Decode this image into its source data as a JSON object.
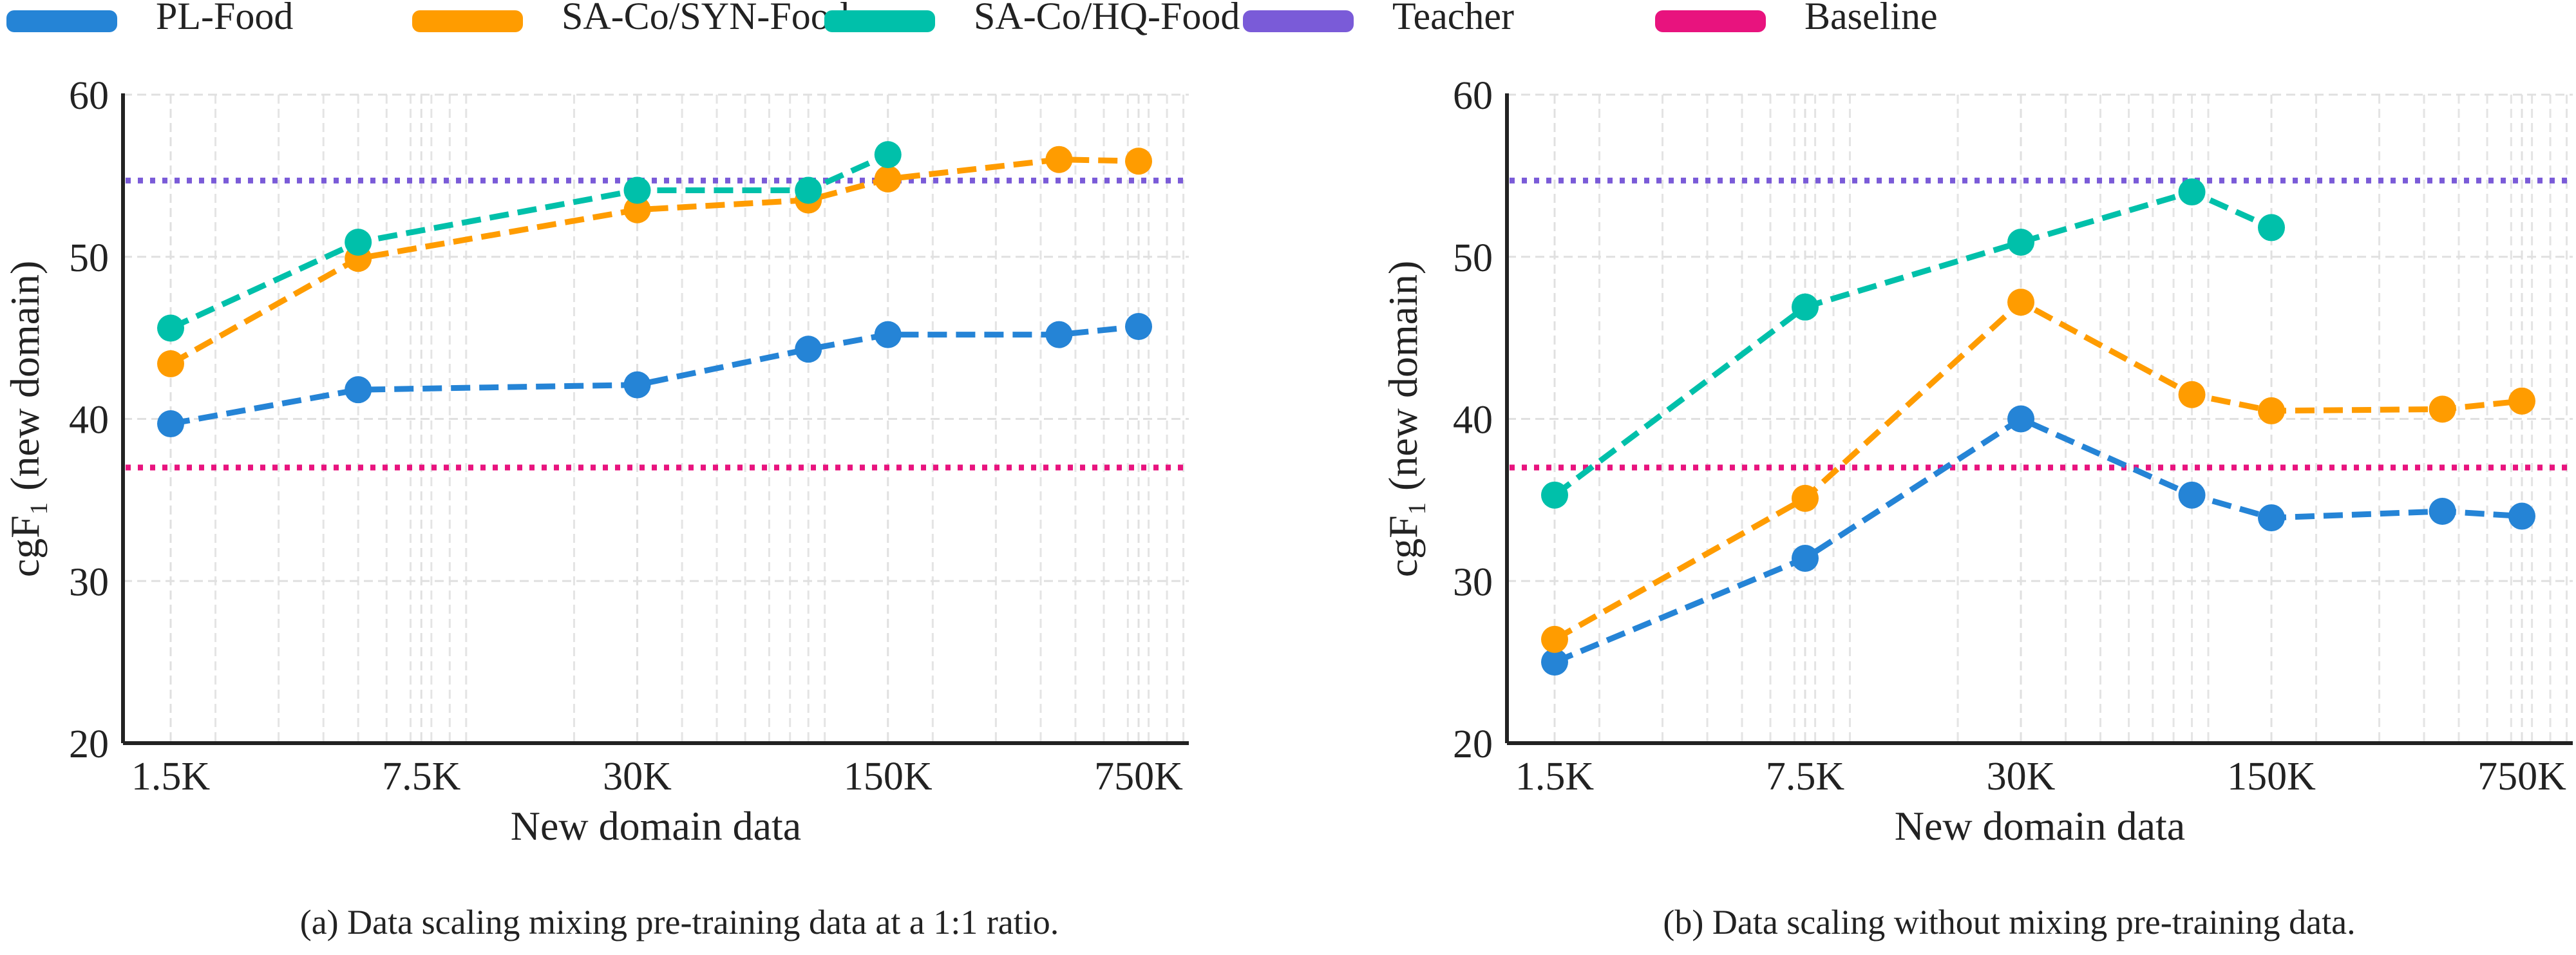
{
  "legend": [
    {
      "label": "PL-Food",
      "color": "#2584d6"
    },
    {
      "label": "SA-Co/SYN-Food",
      "color": "#ff9c00"
    },
    {
      "label": "SA-Co/HQ-Food",
      "color": "#00c0aa"
    },
    {
      "label": "Teacher",
      "color": "#7a5bd8"
    },
    {
      "label": "Baseline",
      "color": "#e8137e"
    }
  ],
  "chart_data": [
    {
      "type": "line",
      "caption": "(a) Data scaling mixing pre-training data at a 1:1 ratio.",
      "xlabel": "New domain data",
      "ylabel": "cgF₁ (new domain)",
      "xscale": "log",
      "xticks": [
        1500,
        7500,
        30000,
        150000,
        750000
      ],
      "xtick_labels": [
        "1.5K",
        "7.5K",
        "30K",
        "150K",
        "750K"
      ],
      "yticks": [
        20,
        30,
        40,
        50,
        60
      ],
      "ylim": [
        20,
        60
      ],
      "grid": true,
      "series": [
        {
          "name": "PL-Food",
          "x": [
            1500,
            5000,
            30000,
            90000,
            150000,
            450000,
            750000
          ],
          "y": [
            39.7,
            41.8,
            42.1,
            44.3,
            45.2,
            45.2,
            45.7
          ]
        },
        {
          "name": "SA-Co/SYN-Food",
          "x": [
            1500,
            5000,
            30000,
            90000,
            150000,
            450000,
            750000
          ],
          "y": [
            43.4,
            49.9,
            52.9,
            53.5,
            54.8,
            56.0,
            55.9
          ]
        },
        {
          "name": "SA-Co/HQ-Food",
          "x": [
            1500,
            5000,
            30000,
            90000,
            150000
          ],
          "y": [
            45.6,
            50.9,
            54.1,
            54.1,
            56.3
          ]
        }
      ],
      "hlines": [
        {
          "name": "Teacher",
          "y": 54.7
        },
        {
          "name": "Baseline",
          "y": 37.0
        }
      ]
    },
    {
      "type": "line",
      "caption": "(b) Data scaling without mixing pre-training data.",
      "xlabel": "New domain data",
      "ylabel": "cgF₁ (new domain)",
      "xscale": "log",
      "xticks": [
        1500,
        7500,
        30000,
        150000,
        750000
      ],
      "xtick_labels": [
        "1.5K",
        "7.5K",
        "30K",
        "150K",
        "750K"
      ],
      "yticks": [
        20,
        30,
        40,
        50,
        60
      ],
      "ylim": [
        20,
        60
      ],
      "grid": true,
      "series": [
        {
          "name": "PL-Food",
          "x": [
            1500,
            7500,
            30000,
            90000,
            150000,
            450000,
            750000
          ],
          "y": [
            25.0,
            31.4,
            40.0,
            35.3,
            33.9,
            34.3,
            34.0
          ]
        },
        {
          "name": "SA-Co/SYN-Food",
          "x": [
            1500,
            7500,
            30000,
            90000,
            150000,
            450000,
            750000
          ],
          "y": [
            26.4,
            35.1,
            47.2,
            41.5,
            40.5,
            40.6,
            41.1
          ]
        },
        {
          "name": "SA-Co/HQ-Food",
          "x": [
            1500,
            7500,
            30000,
            90000,
            150000
          ],
          "y": [
            35.3,
            46.9,
            50.9,
            54.0,
            51.8
          ]
        }
      ],
      "hlines": [
        {
          "name": "Teacher",
          "y": 54.7
        },
        {
          "name": "Baseline",
          "y": 37.0
        }
      ]
    }
  ]
}
